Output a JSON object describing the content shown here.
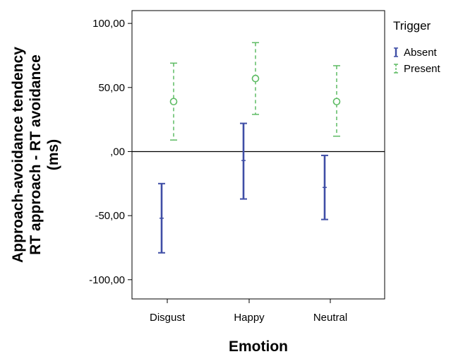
{
  "chart_data": {
    "type": "errorbar",
    "title": "",
    "xlabel": "Emotion",
    "ylabel_lines": [
      "Approach-avoidance tendency",
      "RT approach - RT avoidance",
      "(ms)"
    ],
    "categories": [
      "Disgust",
      "Happy",
      "Neutral"
    ],
    "ylim": [
      -115,
      110
    ],
    "y_ticks": [
      100,
      50,
      0,
      -50,
      -100
    ],
    "y_tick_labels": [
      "100,00",
      "50,00",
      ",00",
      "-50,00",
      "-100,00"
    ],
    "reference_line": 0,
    "grid": false,
    "legend": {
      "title": "Trigger",
      "position": "right"
    },
    "series": [
      {
        "name": "Absent",
        "color": "#3f4ea6",
        "marker": "tick",
        "line_style": "solid",
        "points": [
          {
            "category": "Disgust",
            "mean": -52,
            "lower": -79,
            "upper": -25
          },
          {
            "category": "Happy",
            "mean": -7,
            "lower": -37,
            "upper": 22
          },
          {
            "category": "Neutral",
            "mean": -28,
            "lower": -53,
            "upper": -3
          }
        ]
      },
      {
        "name": "Present",
        "color": "#5dbb63",
        "marker": "circle",
        "line_style": "dashed",
        "points": [
          {
            "category": "Disgust",
            "mean": 39,
            "lower": 9,
            "upper": 69
          },
          {
            "category": "Happy",
            "mean": 57,
            "lower": 29,
            "upper": 85
          },
          {
            "category": "Neutral",
            "mean": 39,
            "lower": 12,
            "upper": 67
          }
        ]
      }
    ]
  }
}
